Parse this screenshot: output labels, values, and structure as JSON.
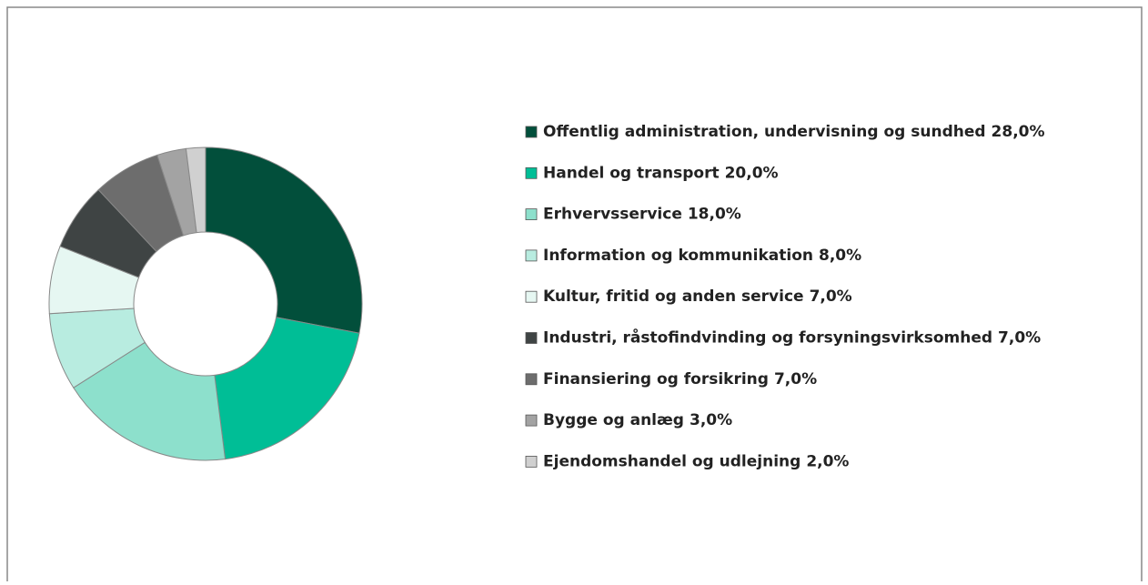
{
  "chart_data": {
    "type": "pie",
    "donut": true,
    "categories": [
      "Offentlig administration, undervisning og sundhed",
      "Handel og transport",
      "Erhvervsservice",
      "Information og kommunikation",
      "Kultur, fritid og anden service",
      "Industri, råstofindvinding og forsyningsvirksomhed",
      "Finansiering og forsikring",
      "Bygge og anlæg",
      "Ejendomshandel og udlejning"
    ],
    "values": [
      28,
      20,
      18,
      8,
      7,
      7,
      7,
      3,
      2
    ],
    "value_labels": [
      "28,0%",
      "20,0%",
      "18,0%",
      "8,0%",
      "7,0%",
      "7,0%",
      "7,0%",
      "3,0%",
      "2,0%"
    ],
    "colors": [
      "#024f3b",
      "#00be96",
      "#8de0cc",
      "#b8ece0",
      "#e6f7f2",
      "#3f4444",
      "#6d6d6d",
      "#a3a3a3",
      "#d0d0d0"
    ],
    "legend": "right"
  }
}
